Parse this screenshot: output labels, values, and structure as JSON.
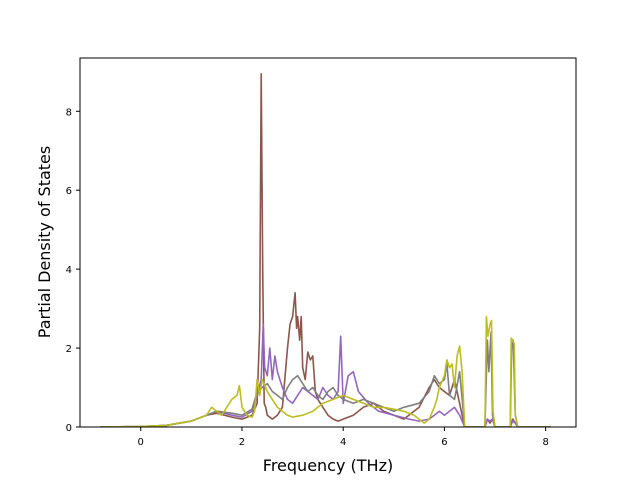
{
  "chart_data": {
    "type": "line",
    "title": "",
    "xlabel": "Frequency (THz)",
    "ylabel": "Partial Density of States",
    "xlim": [
      -1.2,
      8.6
    ],
    "ylim": [
      0,
      9.35
    ],
    "xticks": [
      0,
      2,
      4,
      6,
      8
    ],
    "yticks": [
      0,
      2,
      4,
      6,
      8
    ],
    "grid": false,
    "legend": "none",
    "series": [
      {
        "color": "#8c564b",
        "x": [
          -0.8,
          0,
          0.5,
          1.0,
          1.3,
          1.5,
          1.8,
          2.0,
          2.2,
          2.3,
          2.35,
          2.38,
          2.41,
          2.44,
          2.47,
          2.5,
          2.6,
          2.7,
          2.8,
          2.9,
          2.95,
          3.0,
          3.05,
          3.08,
          3.1,
          3.14,
          3.17,
          3.2,
          3.25,
          3.3,
          3.35,
          3.4,
          3.45,
          3.5,
          3.6,
          3.7,
          3.8,
          3.9,
          4.0,
          4.2,
          4.4,
          4.6,
          4.8,
          5.0,
          5.2,
          5.5,
          5.7,
          5.8,
          5.9,
          6.0,
          6.1,
          6.2,
          6.3,
          6.4,
          6.5,
          6.8,
          6.85,
          6.9,
          6.95,
          7.0,
          7.3,
          7.35,
          7.4,
          7.45,
          8.1
        ],
        "y": [
          0,
          0.01,
          0.04,
          0.15,
          0.3,
          0.35,
          0.25,
          0.2,
          0.3,
          0.6,
          2.5,
          8.95,
          4.0,
          0.6,
          0.5,
          0.3,
          0.2,
          0.3,
          0.5,
          2.0,
          2.6,
          2.8,
          3.4,
          2.5,
          2.8,
          2.2,
          2.8,
          1.5,
          1.2,
          1.9,
          1.7,
          1.8,
          0.9,
          0.7,
          0.5,
          0.3,
          0.2,
          0.15,
          0.2,
          0.3,
          0.5,
          0.6,
          0.4,
          0.3,
          0.2,
          0.5,
          1.0,
          1.2,
          1.0,
          0.9,
          0.8,
          1.2,
          0.6,
          0,
          0,
          0,
          0.2,
          0.1,
          0.2,
          0,
          0,
          0.2,
          0.1,
          0,
          0
        ]
      },
      {
        "color": "#9467bd",
        "x": [
          -0.8,
          0,
          0.5,
          1.0,
          1.3,
          1.5,
          1.8,
          2.0,
          2.2,
          2.3,
          2.38,
          2.42,
          2.45,
          2.5,
          2.55,
          2.6,
          2.65,
          2.7,
          2.8,
          2.9,
          3.0,
          3.1,
          3.2,
          3.3,
          3.4,
          3.5,
          3.6,
          3.7,
          3.8,
          3.9,
          3.95,
          4.0,
          4.1,
          4.2,
          4.3,
          4.5,
          4.7,
          5.0,
          5.3,
          5.5,
          5.7,
          5.8,
          5.9,
          6.0,
          6.1,
          6.2,
          6.3,
          6.4,
          6.5,
          6.8,
          6.85,
          6.9,
          6.95,
          7.0,
          7.3,
          7.35,
          7.4,
          7.45,
          8.1
        ],
        "y": [
          0,
          0.01,
          0.04,
          0.15,
          0.3,
          0.4,
          0.3,
          0.25,
          0.4,
          0.8,
          1.2,
          2.6,
          1.5,
          1.3,
          2.0,
          1.2,
          1.8,
          1.4,
          1.0,
          0.7,
          0.6,
          0.8,
          1.0,
          0.9,
          0.8,
          0.7,
          1.0,
          0.8,
          0.7,
          0.9,
          2.3,
          0.6,
          1.3,
          1.4,
          0.9,
          0.6,
          0.4,
          0.3,
          0.2,
          0.15,
          0.2,
          0.3,
          0.4,
          0.3,
          0.4,
          0.5,
          0.3,
          0,
          0,
          0,
          0.2,
          0.15,
          0.2,
          0,
          0,
          0.15,
          0.1,
          0,
          0
        ]
      },
      {
        "color": "#7f7f7f",
        "x": [
          -0.8,
          0,
          0.5,
          1.0,
          1.3,
          1.5,
          1.8,
          2.0,
          2.2,
          2.3,
          2.4,
          2.5,
          2.6,
          2.7,
          2.8,
          2.9,
          3.0,
          3.1,
          3.2,
          3.3,
          3.4,
          3.5,
          3.6,
          3.7,
          3.8,
          3.9,
          4.0,
          4.2,
          4.4,
          4.6,
          4.8,
          5.0,
          5.2,
          5.5,
          5.7,
          5.8,
          5.9,
          6.0,
          6.05,
          6.1,
          6.2,
          6.3,
          6.4,
          6.5,
          6.8,
          6.85,
          6.88,
          6.92,
          6.95,
          7.0,
          7.3,
          7.33,
          7.36,
          7.4,
          7.45,
          8.1
        ],
        "y": [
          0,
          0.01,
          0.04,
          0.15,
          0.3,
          0.4,
          0.35,
          0.3,
          0.45,
          0.9,
          1.0,
          1.1,
          0.9,
          0.8,
          0.7,
          1.0,
          1.2,
          1.3,
          1.1,
          0.9,
          1.0,
          0.8,
          0.7,
          0.9,
          1.0,
          0.8,
          0.7,
          0.6,
          0.7,
          0.6,
          0.5,
          0.4,
          0.5,
          0.6,
          0.9,
          1.3,
          1.1,
          1.2,
          1.6,
          0.8,
          0.7,
          1.4,
          0,
          0,
          0,
          2.2,
          1.4,
          2.4,
          0.3,
          0,
          0,
          2.0,
          2.2,
          0.3,
          0,
          0
        ]
      },
      {
        "color": "#bcbd22",
        "x": [
          -0.8,
          0,
          0.5,
          1.0,
          1.3,
          1.4,
          1.5,
          1.6,
          1.7,
          1.8,
          1.9,
          1.95,
          2.0,
          2.1,
          2.2,
          2.25,
          2.3,
          2.35,
          2.4,
          2.5,
          2.6,
          2.7,
          2.8,
          2.9,
          3.0,
          3.2,
          3.4,
          3.5,
          3.6,
          3.8,
          4.0,
          4.2,
          4.4,
          4.6,
          4.8,
          5.0,
          5.2,
          5.4,
          5.5,
          5.6,
          5.7,
          5.8,
          5.85,
          5.9,
          6.0,
          6.05,
          6.1,
          6.15,
          6.2,
          6.25,
          6.3,
          6.35,
          6.4,
          6.5,
          6.8,
          6.83,
          6.86,
          6.9,
          6.93,
          6.96,
          7.0,
          7.3,
          7.32,
          7.35,
          7.38,
          7.4,
          7.45,
          8.1
        ],
        "y": [
          0,
          0.01,
          0.04,
          0.15,
          0.3,
          0.5,
          0.4,
          0.3,
          0.5,
          0.7,
          0.8,
          1.05,
          0.5,
          0.3,
          0.25,
          0.4,
          1.2,
          0.8,
          1.2,
          0.9,
          0.7,
          0.5,
          0.4,
          0.3,
          0.25,
          0.3,
          0.4,
          0.5,
          0.6,
          0.7,
          0.8,
          0.7,
          0.6,
          0.5,
          0.5,
          0.45,
          0.4,
          0.3,
          0.2,
          0.1,
          0.2,
          0.5,
          0.7,
          1.0,
          1.3,
          1.7,
          1.5,
          1.6,
          1.0,
          1.8,
          2.05,
          1.4,
          0,
          0,
          0,
          2.8,
          2.3,
          2.6,
          2.7,
          0.4,
          0,
          0,
          2.25,
          2.2,
          2.1,
          0.3,
          0,
          0
        ]
      }
    ]
  }
}
